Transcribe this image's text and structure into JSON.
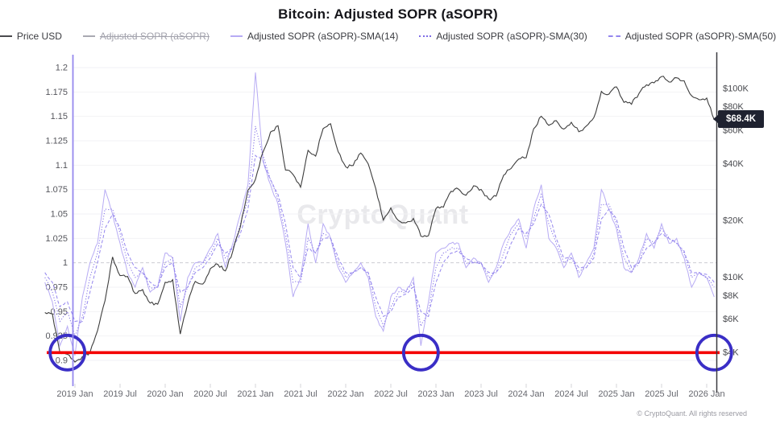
{
  "title": "Bitcoin: Adjusted SOPR (aSOPR)",
  "watermark": "CryptoQuant",
  "copyright": "© CryptoQuant. All rights reserved",
  "price_badge": {
    "label": "$68.4K",
    "bg": "#1f2230",
    "fg": "#ffffff"
  },
  "legend": {
    "items": [
      {
        "label": "Price USD",
        "color": "#4a4a4e",
        "style": "solid",
        "enabled": true
      },
      {
        "label": "Adjusted SOPR (aSOPR)",
        "color": "#a9a9b2",
        "style": "solid",
        "enabled": false
      },
      {
        "label": "Adjusted SOPR (aSOPR)-SMA(14)",
        "color": "#b7abf4",
        "style": "solid",
        "enabled": true
      },
      {
        "label": "Adjusted SOPR (aSOPR)-SMA(30)",
        "color": "#7e6ce6",
        "style": "dotted",
        "enabled": true
      },
      {
        "label": "Adjusted SOPR (aSOPR)-SMA(50)",
        "color": "#9486ee",
        "style": "dashed",
        "enabled": true
      }
    ]
  },
  "annotations": {
    "red_line": {
      "axis": "left",
      "value": 0.908,
      "color": "#f40000"
    },
    "circles": {
      "color": "#3a2ec6",
      "months": [
        "2018-12",
        "2022-11",
        "2026-02"
      ]
    }
  },
  "chart_data": {
    "type": "line",
    "title": "Bitcoin: Adjusted SOPR (aSOPR)",
    "grid": true,
    "legend_position": "top",
    "x": [
      "2018-09",
      "2018-10",
      "2018-11",
      "2018-12",
      "2019-01",
      "2019-02",
      "2019-03",
      "2019-04",
      "2019-05",
      "2019-06",
      "2019-07",
      "2019-08",
      "2019-09",
      "2019-10",
      "2019-11",
      "2019-12",
      "2020-01",
      "2020-02",
      "2020-03",
      "2020-04",
      "2020-05",
      "2020-06",
      "2020-07",
      "2020-08",
      "2020-09",
      "2020-10",
      "2020-11",
      "2020-12",
      "2021-01",
      "2021-02",
      "2021-03",
      "2021-04",
      "2021-05",
      "2021-06",
      "2021-07",
      "2021-08",
      "2021-09",
      "2021-10",
      "2021-11",
      "2021-12",
      "2022-01",
      "2022-02",
      "2022-03",
      "2022-04",
      "2022-05",
      "2022-06",
      "2022-07",
      "2022-08",
      "2022-09",
      "2022-10",
      "2022-11",
      "2022-12",
      "2023-01",
      "2023-02",
      "2023-03",
      "2023-04",
      "2023-05",
      "2023-06",
      "2023-07",
      "2023-08",
      "2023-09",
      "2023-10",
      "2023-11",
      "2023-12",
      "2024-01",
      "2024-02",
      "2024-03",
      "2024-04",
      "2024-05",
      "2024-06",
      "2024-07",
      "2024-08",
      "2024-09",
      "2024-10",
      "2024-11",
      "2024-12",
      "2025-01",
      "2025-02",
      "2025-03",
      "2025-04",
      "2025-05",
      "2025-06",
      "2025-07",
      "2025-08",
      "2025-09",
      "2025-10",
      "2025-11",
      "2025-12",
      "2026-01",
      "2026-02"
    ],
    "series": [
      {
        "name": "Adjusted SOPR (aSOPR)-SMA(14)",
        "axis": "left",
        "color": "#b7abf4",
        "dash": "solid",
        "values": [
          0.98,
          0.96,
          0.915,
          0.935,
          0.905,
          0.965,
          1.0,
          1.02,
          1.075,
          1.05,
          1.02,
          0.99,
          0.975,
          0.995,
          0.97,
          0.975,
          1.01,
          1.005,
          0.94,
          0.985,
          1.0,
          1.0,
          1.015,
          1.03,
          0.995,
          1.02,
          1.05,
          1.08,
          1.195,
          1.105,
          1.08,
          1.06,
          1.02,
          0.965,
          0.985,
          1.04,
          1.0,
          1.04,
          1.025,
          0.995,
          0.98,
          0.99,
          1.0,
          0.985,
          0.945,
          0.93,
          0.965,
          0.975,
          0.97,
          0.985,
          0.915,
          0.96,
          1.01,
          1.015,
          1.02,
          1.02,
          0.995,
          1.005,
          1.0,
          0.98,
          0.995,
          1.02,
          1.035,
          1.045,
          1.015,
          1.055,
          1.08,
          1.025,
          1.015,
          0.995,
          1.01,
          0.985,
          1.0,
          1.015,
          1.075,
          1.055,
          1.035,
          0.995,
          0.99,
          1.005,
          1.03,
          1.015,
          1.04,
          1.02,
          1.025,
          1.005,
          0.975,
          0.99,
          0.985,
          0.965
        ]
      },
      {
        "name": "Adjusted SOPR (aSOPR)-SMA(30)",
        "axis": "left",
        "color": "#7e6ce6",
        "dash": "dotted",
        "values": [
          0.985,
          0.97,
          0.94,
          0.95,
          0.925,
          0.945,
          0.985,
          1.01,
          1.055,
          1.055,
          1.03,
          1.0,
          0.985,
          0.99,
          0.975,
          0.975,
          1.0,
          1.005,
          0.955,
          0.975,
          0.995,
          1.0,
          1.01,
          1.025,
          1.005,
          1.015,
          1.04,
          1.065,
          1.14,
          1.11,
          1.085,
          1.065,
          1.03,
          0.98,
          0.98,
          1.025,
          1.01,
          1.03,
          1.025,
          1.0,
          0.985,
          0.99,
          0.995,
          0.99,
          0.955,
          0.935,
          0.955,
          0.97,
          0.97,
          0.98,
          0.935,
          0.95,
          0.995,
          1.01,
          1.015,
          1.015,
          1.0,
          1.0,
          1.0,
          0.985,
          0.99,
          1.01,
          1.03,
          1.04,
          1.025,
          1.045,
          1.07,
          1.04,
          1.02,
          1.0,
          1.005,
          0.99,
          0.995,
          1.01,
          1.06,
          1.06,
          1.04,
          1.005,
          0.99,
          1.0,
          1.025,
          1.02,
          1.035,
          1.025,
          1.02,
          1.01,
          0.985,
          0.99,
          0.985,
          0.975
        ]
      },
      {
        "name": "Adjusted SOPR (aSOPR)-SMA(50)",
        "axis": "left",
        "color": "#9486ee",
        "dash": "dashed",
        "values": [
          0.99,
          0.98,
          0.955,
          0.96,
          0.94,
          0.94,
          0.97,
          1.0,
          1.035,
          1.05,
          1.035,
          1.01,
          0.995,
          0.99,
          0.98,
          0.975,
          0.995,
          1.0,
          0.97,
          0.975,
          0.99,
          0.995,
          1.005,
          1.02,
          1.01,
          1.015,
          1.03,
          1.055,
          1.11,
          1.105,
          1.085,
          1.07,
          1.04,
          0.995,
          0.985,
          1.015,
          1.01,
          1.025,
          1.025,
          1.005,
          0.99,
          0.99,
          0.995,
          0.99,
          0.965,
          0.945,
          0.95,
          0.965,
          0.968,
          0.975,
          0.95,
          0.945,
          0.98,
          1.0,
          1.01,
          1.012,
          1.005,
          1.0,
          1.0,
          0.99,
          0.99,
          1.0,
          1.02,
          1.035,
          1.03,
          1.04,
          1.06,
          1.05,
          1.025,
          1.005,
          1.005,
          0.995,
          0.995,
          1.005,
          1.045,
          1.055,
          1.045,
          1.015,
          0.995,
          1.0,
          1.015,
          1.02,
          1.03,
          1.025,
          1.02,
          1.012,
          0.99,
          0.99,
          0.988,
          0.98
        ]
      },
      {
        "name": "Price USD",
        "axis": "right",
        "color": "#3d3d3d",
        "dash": "solid",
        "values": [
          6500,
          6400,
          4000,
          3900,
          3550,
          3800,
          4000,
          5200,
          7500,
          12800,
          10200,
          10100,
          8200,
          8600,
          7300,
          7200,
          9400,
          9700,
          5000,
          7300,
          9500,
          9200,
          11100,
          11700,
          10800,
          13800,
          18500,
          28900,
          33000,
          46000,
          58800,
          63500,
          37000,
          35000,
          30000,
          47000,
          43800,
          61300,
          65000,
          46200,
          38500,
          39100,
          45500,
          39800,
          29500,
          20100,
          23300,
          20000,
          19400,
          20500,
          16500,
          16600,
          23100,
          23500,
          28500,
          29300,
          27200,
          30500,
          29200,
          26000,
          26900,
          34700,
          37700,
          42300,
          43000,
          61200,
          71300,
          63800,
          67500,
          61000,
          66200,
          59000,
          63300,
          70200,
          96500,
          93400,
          102000,
          84400,
          82500,
          94200,
          104600,
          107100,
          115800,
          108200,
          114000,
          109900,
          91500,
          87200,
          89000,
          68400
        ]
      }
    ],
    "left_axis": {
      "range": [
        0.9,
        1.2
      ],
      "tick_labels": [
        "1.2",
        "1.175",
        "1.15",
        "1.125",
        "1.1",
        "1.075",
        "1.05",
        "1.025",
        "1",
        "0.975",
        "0.95",
        "0.925",
        "0.9"
      ],
      "tick_values": [
        1.2,
        1.175,
        1.15,
        1.125,
        1.1,
        1.075,
        1.05,
        1.025,
        1,
        0.975,
        0.95,
        0.925,
        0.9
      ]
    },
    "right_axis": {
      "scale": "log",
      "tick_labels": [
        "$100K",
        "$80K",
        "$60K",
        "$40K",
        "$20K",
        "$10K",
        "$8K",
        "$6K",
        "$4K"
      ],
      "tick_values": [
        100000,
        80000,
        60000,
        40000,
        20000,
        10000,
        8000,
        6000,
        4000
      ],
      "last_price": 68400
    },
    "x_ticks": [
      {
        "label": "2019 Jan",
        "month": "2019-01"
      },
      {
        "label": "2019 Jul",
        "month": "2019-07"
      },
      {
        "label": "2020 Jan",
        "month": "2020-01"
      },
      {
        "label": "2020 Jul",
        "month": "2020-07"
      },
      {
        "label": "2021 Jan",
        "month": "2021-01"
      },
      {
        "label": "2021 Jul",
        "month": "2021-07"
      },
      {
        "label": "2022 Jan",
        "month": "2022-01"
      },
      {
        "label": "2022 Jul",
        "month": "2022-07"
      },
      {
        "label": "2023 Jan",
        "month": "2023-01"
      },
      {
        "label": "2023 Jul",
        "month": "2023-07"
      },
      {
        "label": "2024 Jan",
        "month": "2024-01"
      },
      {
        "label": "2024 Jul",
        "month": "2024-07"
      },
      {
        "label": "2025 Jan",
        "month": "2025-01"
      },
      {
        "label": "2025 Jul",
        "month": "2025-07"
      },
      {
        "label": "2026 Jan",
        "month": "2026-01"
      }
    ]
  }
}
